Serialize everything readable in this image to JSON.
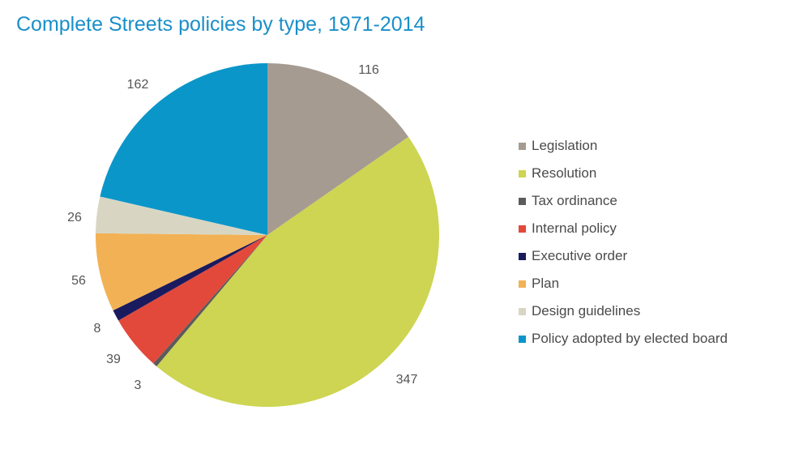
{
  "chart_data": {
    "type": "pie",
    "title": "Complete Streets policies by type, 1971-2014",
    "slices": [
      {
        "label": "Legislation",
        "value": 116,
        "color": "#a59b90"
      },
      {
        "label": "Resolution",
        "value": 347,
        "color": "#cdd552"
      },
      {
        "label": "Tax ordinance",
        "value": 3,
        "color": "#5b5b5b"
      },
      {
        "label": "Internal policy",
        "value": 39,
        "color": "#e2493b"
      },
      {
        "label": "Executive order",
        "value": 8,
        "color": "#1a1a5e"
      },
      {
        "label": "Plan",
        "value": 56,
        "color": "#f2b155"
      },
      {
        "label": "Design guidelines",
        "value": 26,
        "color": "#d8d6c3"
      },
      {
        "label": "Policy adopted by elected board",
        "value": 162,
        "color": "#0b96c9"
      }
    ],
    "legend_position": "right",
    "start_angle": "12 o'clock",
    "direction": "clockwise"
  }
}
